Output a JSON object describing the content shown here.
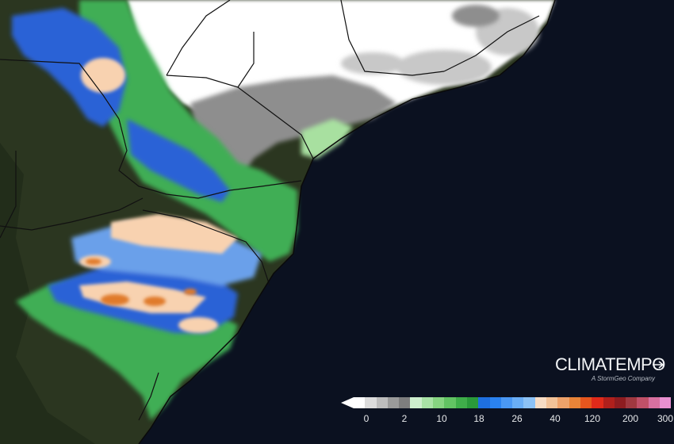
{
  "map": {
    "colors": {
      "ocean": "#0b1120",
      "land": "#2b3620",
      "land_dark": "#1f2a18",
      "no_rain": "#ffffff",
      "light_gray": "#c8c8c8",
      "gray": "#8e8e8e",
      "light_green": "#a8e0a0",
      "green": "#3fae55",
      "blue": "#2a62d6",
      "light_blue": "#6aa0ea",
      "peach": "#f8d2b0",
      "orange": "#e07a2a",
      "border": "#101010"
    }
  },
  "brand": {
    "name": "CLIMATEMPO",
    "subtitle": "A StormGeo Company"
  },
  "legend": {
    "colors": [
      "#ffffff",
      "#dcdcdc",
      "#bdbdbd",
      "#9a9a9a",
      "#7e7e7e",
      "#cdeecd",
      "#a9e2a6",
      "#86d481",
      "#62c363",
      "#3fae4a",
      "#2a9a3a",
      "#1e6fe0",
      "#2a82f0",
      "#4a98f4",
      "#6aaef6",
      "#8cc2f6",
      "#f7dcc4",
      "#f2c298",
      "#eea26a",
      "#e88438",
      "#e5561e",
      "#e02a1a",
      "#b0201c",
      "#8e1c20",
      "#a03840",
      "#c05068",
      "#d870a0",
      "#e890d0"
    ],
    "ticks": [
      "0",
      "2",
      "10",
      "18",
      "26",
      "40",
      "120",
      "200",
      "300"
    ]
  }
}
